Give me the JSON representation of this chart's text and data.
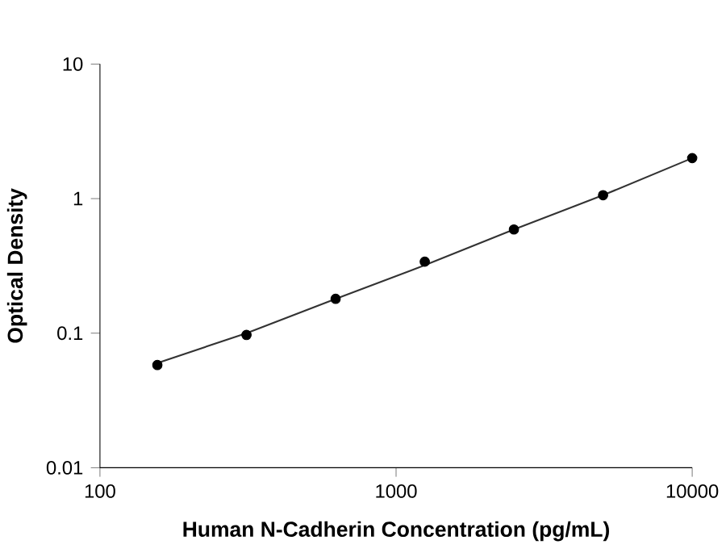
{
  "chart_data": {
    "type": "scatter",
    "xlabel": "Human N-Cadherin Concentration (pg/mL)",
    "ylabel": "Optical Density",
    "log": "xy",
    "grid": false,
    "xlim": [
      100,
      10000
    ],
    "xticks": [
      100,
      1000,
      10000
    ],
    "ylim": [
      0.01,
      10
    ],
    "yticks": [
      0.01,
      0.1,
      1,
      10
    ],
    "series": [
      {
        "type": "line",
        "marker": "none",
        "color": "#333333",
        "x": [
          156.25,
          312.5,
          625,
          1250,
          2500,
          5000,
          10000
        ],
        "values": [
          0.06,
          0.1,
          0.18,
          0.32,
          0.59,
          1.06,
          2.0
        ]
      },
      {
        "marker": "circle",
        "color": "#000000",
        "x": [
          156.25,
          312.5,
          625,
          1250,
          2500,
          5000,
          10000
        ],
        "values": [
          0.058,
          0.097,
          0.18,
          0.34,
          0.59,
          1.06,
          2.0
        ]
      }
    ]
  }
}
